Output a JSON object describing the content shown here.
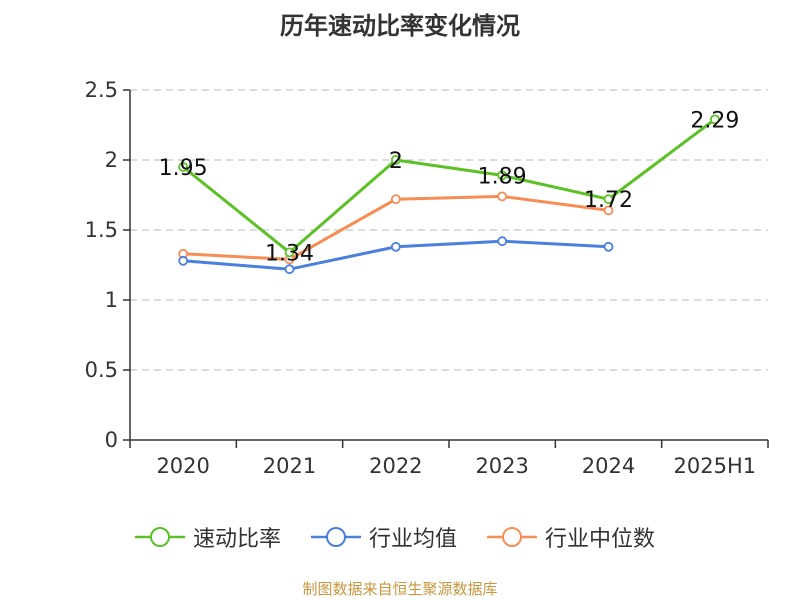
{
  "chart_data": {
    "type": "line",
    "title": "历年速动比率变化情况",
    "categories": [
      "2020",
      "2021",
      "2022",
      "2023",
      "2024",
      "2025H1"
    ],
    "ylim": [
      0,
      2.5
    ],
    "yticks": [
      "0",
      "0.5",
      "1",
      "1.5",
      "2",
      "2.5"
    ],
    "grid": true,
    "legend_position": "bottom",
    "series": [
      {
        "name": "速动比率",
        "color": "#5bc126",
        "values": [
          1.95,
          1.34,
          2,
          1.89,
          1.72,
          2.29
        ],
        "data_labels": [
          "1.95",
          "1.34",
          "2",
          "1.89",
          "1.72",
          "2.29"
        ]
      },
      {
        "name": "行业均值",
        "color": "#4a7fdc",
        "values": [
          1.28,
          1.22,
          1.38,
          1.42,
          1.38,
          null
        ]
      },
      {
        "name": "行业中位数",
        "color": "#f68d55",
        "values": [
          1.33,
          1.29,
          1.72,
          1.74,
          1.64,
          null
        ]
      }
    ]
  },
  "source_note": "制图数据来自恒生聚源数据库"
}
